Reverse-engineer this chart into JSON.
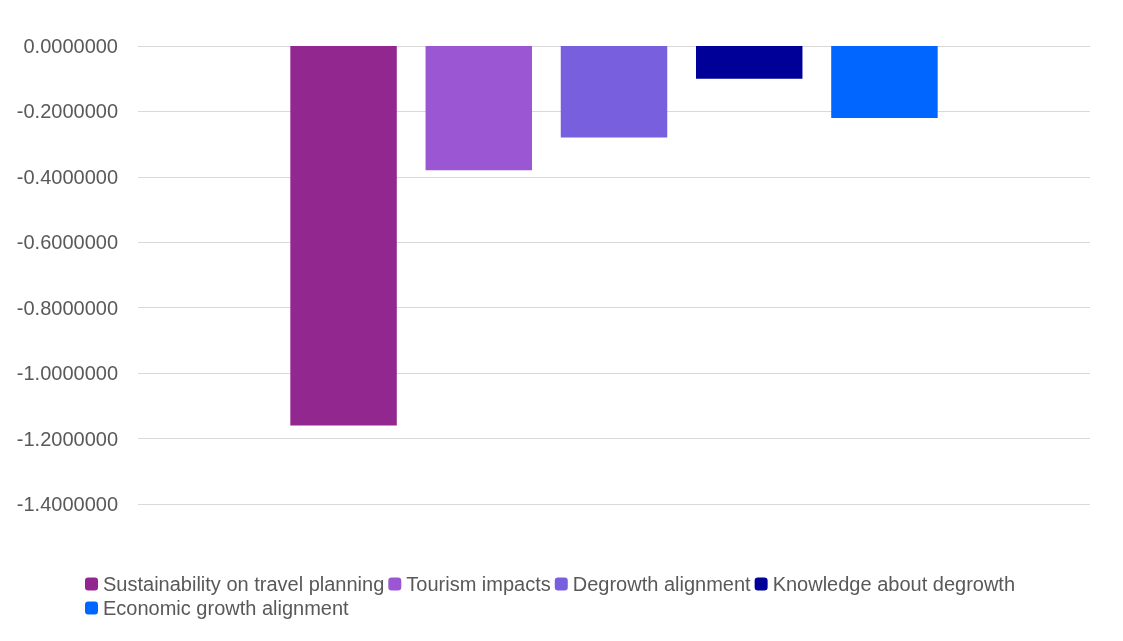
{
  "chart_data": {
    "type": "bar",
    "categories": [
      null
    ],
    "series": [
      {
        "name": "Sustainability on travel planning",
        "color": "#92278f",
        "values": [
          -1.16
        ]
      },
      {
        "name": "Tourism impacts",
        "color": "#9b57d3",
        "values": [
          -0.38
        ]
      },
      {
        "name": "Degrowth alignment",
        "color": "#775fdd",
        "values": [
          -0.28
        ]
      },
      {
        "name": "Knowledge about degrowth",
        "color": "#000099",
        "values": [
          -0.1
        ]
      },
      {
        "name": "Economic growth alignment",
        "color": "#0066ff",
        "values": [
          -0.22
        ]
      }
    ],
    "ylim": [
      -1.4,
      0
    ],
    "yticks": [
      {
        "value": -1.4,
        "label": "-1.4000000"
      },
      {
        "value": -1.2,
        "label": "-1.2000000"
      },
      {
        "value": -1,
        "label": "-1.0000000"
      },
      {
        "value": -0.8,
        "label": "-0.8000000"
      },
      {
        "value": -0.6,
        "label": "-0.6000000"
      },
      {
        "value": -0.4,
        "label": "-0.4000000"
      },
      {
        "value": -0.2,
        "label": "-0.2000000"
      },
      {
        "value": 0,
        "label": "0.0000000"
      }
    ],
    "grid": "y",
    "legend": "bottom"
  }
}
